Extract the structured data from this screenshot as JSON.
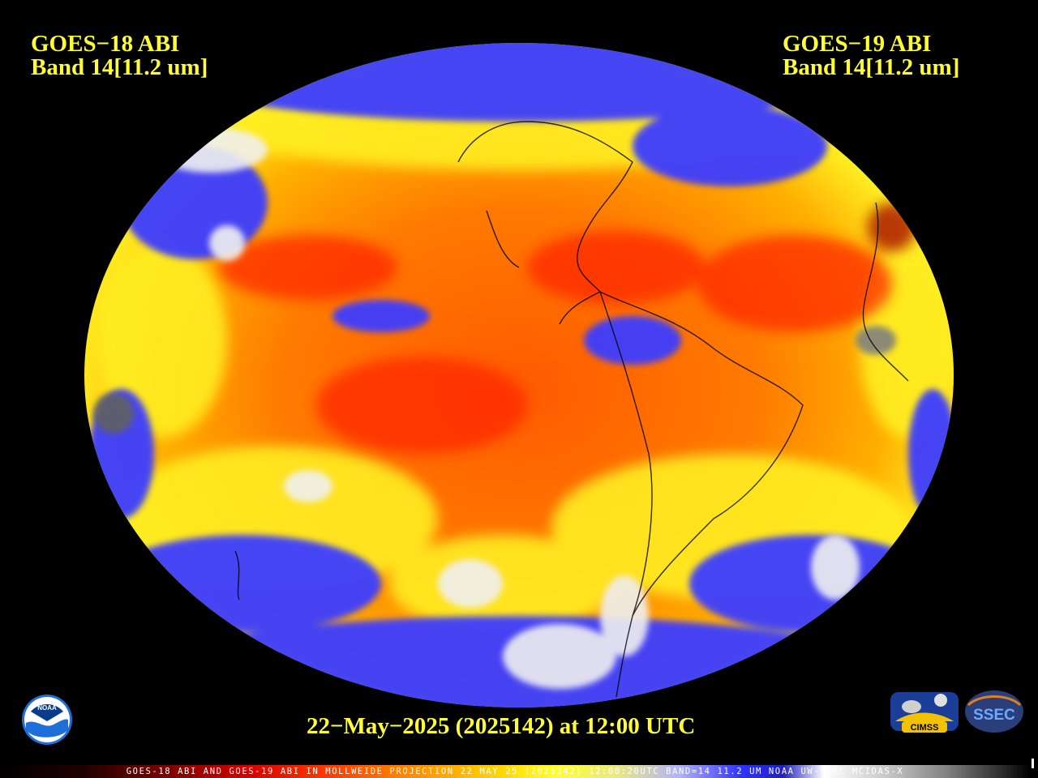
{
  "header": {
    "left_satellite": "GOES−18 ABI",
    "left_band": "Band 14[11.2 um]",
    "right_satellite": "GOES−19 ABI",
    "right_band": "Band 14[11.2 um]"
  },
  "timestamp": "22−May−2025 (2025142) at 12:00 UTC",
  "colorbar_caption": "GOES-18 ABI AND GOES-19 ABI IN MOLLWEIDE PROJECTION 22 MAY 25 (2025142) 12:00:20UTC BAND=14 11.2 UM NOAA UW-SSEC MCIDAS-X",
  "logos": {
    "noaa": "NOAA",
    "cimss": "CIMSS",
    "ssec": "SSEC"
  },
  "colors": {
    "text_yellow": "#ffff33",
    "background": "#000000",
    "ocean_warm": "#ff6a00",
    "cloud_blue": "#3c3cff",
    "cloud_cold": "#ffffff"
  }
}
